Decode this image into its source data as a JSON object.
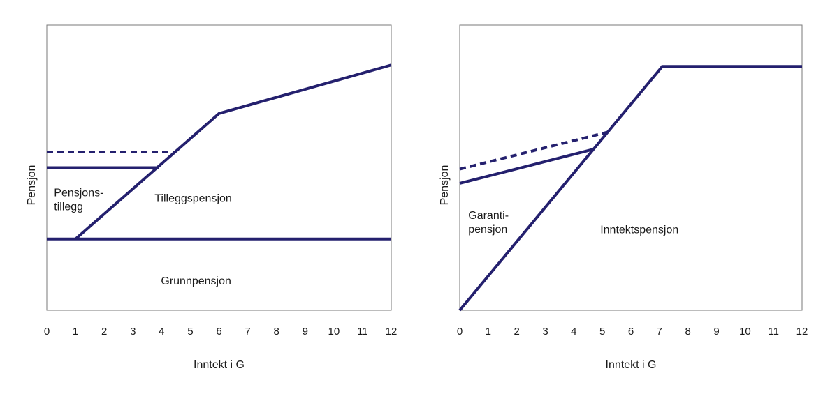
{
  "colors": {
    "line": "#24206e",
    "frame": "#7a7a7a"
  },
  "chart_data": [
    {
      "type": "line",
      "xlabel": "Inntekt i G",
      "ylabel": "Pensjon",
      "xlim": [
        0,
        12
      ],
      "ylim": [
        0,
        100
      ],
      "xticks": [
        "0",
        "1",
        "2",
        "3",
        "4",
        "5",
        "6",
        "7",
        "8",
        "9",
        "10",
        "11",
        "12"
      ],
      "grid": false,
      "series": [
        {
          "style": "solid",
          "x": [
            0,
            12
          ],
          "y": [
            25,
            25
          ]
        },
        {
          "style": "solid",
          "x": [
            1,
            6,
            12
          ],
          "y": [
            25,
            69,
            86
          ]
        },
        {
          "style": "solid",
          "x": [
            0,
            3.9
          ],
          "y": [
            50,
            50
          ]
        },
        {
          "style": "dashed",
          "x": [
            0,
            4.5
          ],
          "y": [
            55.5,
            55.5
          ]
        }
      ],
      "annotations": [
        {
          "lines": [
            "Pensjons-",
            "tillegg"
          ],
          "x": 0.25,
          "y": 40
        },
        {
          "lines": [
            "Tilleggspensjon"
          ],
          "x": 5.1,
          "y": 38
        },
        {
          "lines": [
            "Grunnpensjon"
          ],
          "x": 5.2,
          "y": 9
        }
      ]
    },
    {
      "type": "line",
      "xlabel": "Inntekt i G",
      "ylabel": "Pensjon",
      "xlim": [
        0,
        12
      ],
      "ylim": [
        0,
        100
      ],
      "xticks": [
        "0",
        "1",
        "2",
        "3",
        "4",
        "5",
        "6",
        "7",
        "8",
        "9",
        "10",
        "11",
        "12"
      ],
      "grid": false,
      "series": [
        {
          "style": "solid",
          "x": [
            0,
            7.1,
            12
          ],
          "y": [
            0,
            85.5,
            85.5
          ]
        },
        {
          "style": "solid",
          "x": [
            0,
            4.7
          ],
          "y": [
            44.5,
            56.5
          ]
        },
        {
          "style": "dashed",
          "x": [
            0,
            5.2
          ],
          "y": [
            49.5,
            62.5
          ]
        }
      ],
      "annotations": [
        {
          "lines": [
            "Garanti-",
            "pensjon"
          ],
          "x": 0.3,
          "y": 32
        },
        {
          "lines": [
            "Inntektspensjon"
          ],
          "x": 6.3,
          "y": 27
        }
      ]
    }
  ]
}
